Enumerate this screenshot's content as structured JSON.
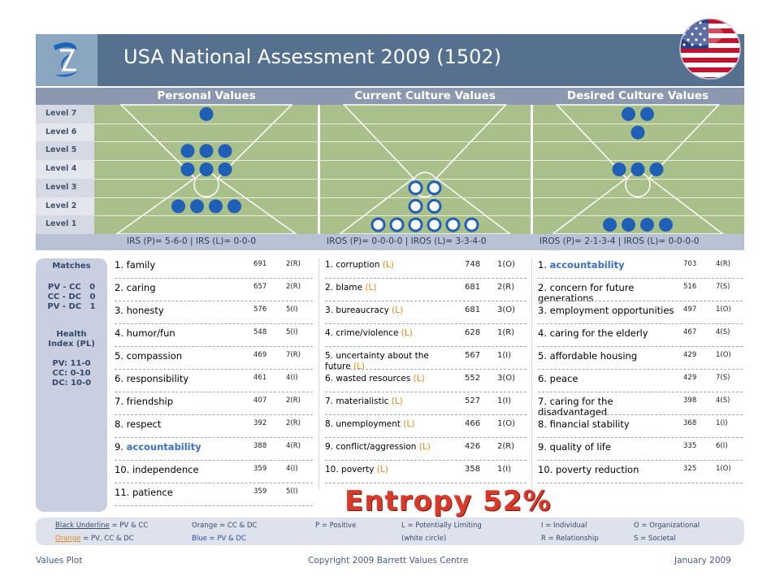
{
  "header": {
    "title": "USA National Assessment 2009 (1502)"
  },
  "columns": {
    "personal": "Personal Values",
    "current": "Current Culture Values",
    "desired": "Desired Culture Values"
  },
  "levels": [
    "Level 7",
    "Level 6",
    "Level 5",
    "Level 4",
    "Level 3",
    "Level 2",
    "Level 1"
  ],
  "dot_counts": {
    "personal": [
      1,
      0,
      3,
      3,
      0,
      4,
      0
    ],
    "current": [
      0,
      0,
      0,
      0,
      2,
      2,
      6
    ],
    "desired": [
      2,
      1,
      0,
      3,
      0,
      0,
      4
    ]
  },
  "irs": {
    "personal": "IRS (P)= 5-6-0 | IRS (L)= 0-0-0",
    "current": "IROS (P)= 0-0-0-0 | IROS (L)= 3-3-4-0",
    "desired": "IROS (P)= 2-1-3-4 | IROS (L)= 0-0-0-0"
  },
  "matches": {
    "heading": "Matches",
    "lines": "PV - CC   0\nCC - DC   0\nPV - DC   1",
    "health_heading": "Health\nIndex (PL)",
    "health_lines": "PV: 11-0\nCC: 0-10\nDC: 10-0"
  },
  "personal_values": [
    {
      "rank": "1.",
      "name": "family",
      "score": "691",
      "code": "2(R)"
    },
    {
      "rank": "2.",
      "name": "caring",
      "score": "657",
      "code": "2(R)"
    },
    {
      "rank": "3.",
      "name": "honesty",
      "score": "576",
      "code": "5(I)"
    },
    {
      "rank": "4.",
      "name": "humor/fun",
      "score": "548",
      "code": "5(I)"
    },
    {
      "rank": "5.",
      "name": "compassion",
      "score": "469",
      "code": "7(R)"
    },
    {
      "rank": "6.",
      "name": "responsibility",
      "score": "461",
      "code": "4(I)"
    },
    {
      "rank": "7.",
      "name": "friendship",
      "score": "407",
      "code": "2(R)"
    },
    {
      "rank": "8.",
      "name": "respect",
      "score": "392",
      "code": "2(R)"
    },
    {
      "rank": "9.",
      "name": "accountability",
      "score": "388",
      "code": "4(R)"
    },
    {
      "rank": "10.",
      "name": "independence",
      "score": "359",
      "code": "4(I)"
    },
    {
      "rank": "11.",
      "name": "patience",
      "score": "359",
      "code": "5(I)"
    }
  ],
  "current_values": [
    {
      "rank": "1.",
      "name": "corruption",
      "tag": "(L)",
      "score": "748",
      "code": "1(O)"
    },
    {
      "rank": "2.",
      "name": "blame",
      "tag": "(L)",
      "score": "681",
      "code": "2(R)"
    },
    {
      "rank": "3.",
      "name": "bureaucracy",
      "tag": "(L)",
      "score": "681",
      "code": "3(O)"
    },
    {
      "rank": "4.",
      "name": "crime/violence",
      "tag": "(L)",
      "score": "628",
      "code": "1(R)"
    },
    {
      "rank": "5.",
      "name": "uncertainty about the future",
      "tag": "(L)",
      "score": "567",
      "code": "1(I)"
    },
    {
      "rank": "6.",
      "name": "wasted resources",
      "tag": "(L)",
      "score": "552",
      "code": "3(O)"
    },
    {
      "rank": "7.",
      "name": "materialistic",
      "tag": "(L)",
      "score": "527",
      "code": "1(I)"
    },
    {
      "rank": "8.",
      "name": "unemployment",
      "tag": "(L)",
      "score": "466",
      "code": "1(O)"
    },
    {
      "rank": "9.",
      "name": "conflict/aggression",
      "tag": "(L)",
      "score": "426",
      "code": "2(R)"
    },
    {
      "rank": "10.",
      "name": "poverty",
      "tag": "(L)",
      "score": "358",
      "code": "1(I)"
    }
  ],
  "desired_values": [
    {
      "rank": "1.",
      "name": "accountability",
      "score": "703",
      "code": "4(R)"
    },
    {
      "rank": "2.",
      "name": "concern for future generations",
      "score": "516",
      "code": "7(S)"
    },
    {
      "rank": "3.",
      "name": "employment opportunities",
      "score": "497",
      "code": "1(O)"
    },
    {
      "rank": "4.",
      "name": "caring for the elderly",
      "score": "467",
      "code": "4(S)"
    },
    {
      "rank": "5.",
      "name": "affordable housing",
      "score": "429",
      "code": "1(O)"
    },
    {
      "rank": "6.",
      "name": "peace",
      "score": "429",
      "code": "7(S)"
    },
    {
      "rank": "7.",
      "name": "caring for the disadvantaged",
      "score": "398",
      "code": "4(S)"
    },
    {
      "rank": "8.",
      "name": "financial stability",
      "score": "368",
      "code": "1(I)"
    },
    {
      "rank": "9.",
      "name": "quality of life",
      "score": "335",
      "code": "6(I)"
    },
    {
      "rank": "10.",
      "name": "poverty reduction",
      "score": "325",
      "code": "1(O)"
    }
  ],
  "entropy": "Entropy 52%",
  "legend": {
    "l1a": "Black Underline",
    "l1b": " = PV & CC",
    "l2a": "Orange",
    "l2b": " = PV, CC & DC",
    "orange_cc_dc": "Orange = CC & DC",
    "blue_pv_dc": "Blue = PV & DC",
    "positive": "P = Positive",
    "limiting": "L = Potentially Limiting",
    "white_circle": "(white circle)",
    "individual": "I = Individual",
    "relationship": "R = Relationship",
    "organizational": "O = Organizational",
    "societal": "S = Societal"
  },
  "footer": {
    "left": "Values Plot",
    "center": "Copyright 2009 Barrett Values Centre",
    "right": "January 2009"
  },
  "colors": {
    "header_bg": "#56718f",
    "plot_green": "#aac08a",
    "dot_blue": "#1f5fb5",
    "accent_orange": "#e3861b",
    "entropy_red": "#d73a2a"
  }
}
